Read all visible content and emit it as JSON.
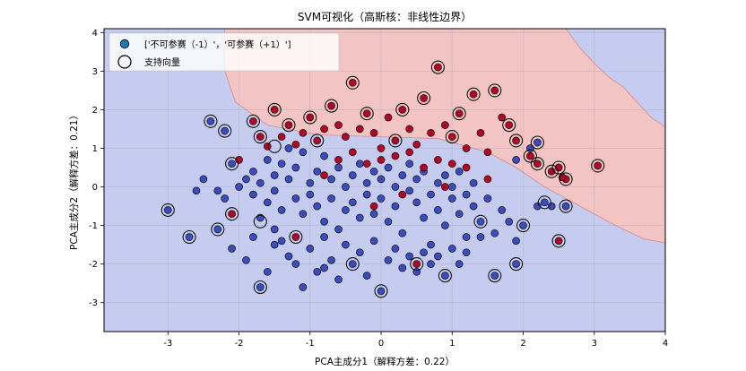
{
  "chart_data": {
    "type": "scatter",
    "title": "SVM可视化（高斯核：非线性边界）",
    "xlabel": "PCA主成分1（解释方差：0.22）",
    "ylabel": "PCA主成分2（解释方差：0.21）",
    "xlim": [
      -3.9,
      4.0
    ],
    "ylim": [
      -3.75,
      4.1
    ],
    "xticks": [
      -3,
      -2,
      -1,
      0,
      1,
      2,
      3,
      4
    ],
    "yticks": [
      -3,
      -2,
      -1,
      0,
      1,
      2,
      3,
      4
    ],
    "grid": true,
    "legend_position": "top-left",
    "legend": [
      {
        "label": "['不可参赛（-1）'，'可参赛（+1）']",
        "marker": "filled-circle"
      },
      {
        "label": "支持向量",
        "marker": "open-circle"
      }
    ],
    "colors": {
      "negative_class": "#3a4cc0",
      "positive_class": "#b40426",
      "negative_region": "#c5ccef",
      "positive_region": "#f2c4c4",
      "boundary": "#d98a8a"
    },
    "decision_region_positive_boundary": [
      [
        -2.2,
        4.1
      ],
      [
        -2.2,
        3.0
      ],
      [
        -2.05,
        2.2
      ],
      [
        -1.6,
        1.6
      ],
      [
        -0.9,
        1.35
      ],
      [
        0.0,
        1.3
      ],
      [
        0.8,
        1.25
      ],
      [
        1.5,
        0.9
      ],
      [
        1.9,
        0.5
      ],
      [
        2.3,
        0.0
      ],
      [
        2.8,
        -0.5
      ],
      [
        3.3,
        -1.0
      ],
      [
        3.7,
        -1.35
      ],
      [
        4.0,
        -1.45
      ],
      [
        4.0,
        1.55
      ],
      [
        3.8,
        1.8
      ],
      [
        3.6,
        2.2
      ],
      [
        3.4,
        2.6
      ],
      [
        3.2,
        2.85
      ],
      [
        3.0,
        3.2
      ],
      [
        2.8,
        3.6
      ],
      [
        2.6,
        4.1
      ]
    ],
    "series": [
      {
        "name": "不可参赛（-1）",
        "class": -1,
        "points": [
          [
            -3.0,
            -0.6
          ],
          [
            -2.7,
            -1.3
          ],
          [
            -2.4,
            1.7
          ],
          [
            -2.2,
            1.45
          ],
          [
            -2.1,
            0.6
          ],
          [
            -2.6,
            -0.1
          ],
          [
            -2.5,
            0.2
          ],
          [
            -2.3,
            -0.1
          ],
          [
            -2.2,
            -0.3
          ],
          [
            -2.0,
            0.0
          ],
          [
            -1.9,
            0.2
          ],
          [
            -1.8,
            0.4
          ],
          [
            -1.8,
            -0.2
          ],
          [
            -1.7,
            0.1
          ],
          [
            -1.6,
            -0.4
          ],
          [
            -1.6,
            0.7
          ],
          [
            -1.5,
            0.3
          ],
          [
            -1.5,
            -0.1
          ],
          [
            -1.4,
            0.6
          ],
          [
            -1.4,
            -0.6
          ],
          [
            -1.3,
            1.0
          ],
          [
            -1.3,
            0.2
          ],
          [
            -1.2,
            -0.3
          ],
          [
            -1.2,
            0.5
          ],
          [
            -1.1,
            0.9
          ],
          [
            -1.1,
            -0.7
          ],
          [
            -1.0,
            0.1
          ],
          [
            -1.0,
            -0.2
          ],
          [
            -0.9,
            0.4
          ],
          [
            -0.9,
            -0.5
          ],
          [
            -0.8,
            0.8
          ],
          [
            -0.8,
            -0.9
          ],
          [
            -0.7,
            0.2
          ],
          [
            -0.7,
            -0.3
          ],
          [
            -0.6,
            0.5
          ],
          [
            -0.6,
            -1.1
          ],
          [
            -0.5,
            0.0
          ],
          [
            -0.5,
            -0.6
          ],
          [
            -0.4,
            0.3
          ],
          [
            -0.4,
            -0.4
          ],
          [
            -0.3,
            0.6
          ],
          [
            -0.3,
            -0.8
          ],
          [
            -0.2,
            0.1
          ],
          [
            -0.2,
            -0.2
          ],
          [
            -0.1,
            0.4
          ],
          [
            -0.1,
            -0.7
          ],
          [
            0.0,
            0.2
          ],
          [
            0.0,
            -0.3
          ],
          [
            0.1,
            0.5
          ],
          [
            0.1,
            -0.9
          ],
          [
            0.2,
            0.0
          ],
          [
            0.2,
            -0.5
          ],
          [
            0.3,
            0.3
          ],
          [
            0.3,
            -1.2
          ],
          [
            0.4,
            0.6
          ],
          [
            0.4,
            -0.1
          ],
          [
            0.5,
            -0.4
          ],
          [
            0.5,
            0.2
          ],
          [
            0.6,
            -0.8
          ],
          [
            0.6,
            0.4
          ],
          [
            0.7,
            -0.2
          ],
          [
            0.7,
            -1.5
          ],
          [
            0.8,
            0.1
          ],
          [
            0.8,
            -0.6
          ],
          [
            0.9,
            0.3
          ],
          [
            0.9,
            -1.0
          ],
          [
            1.0,
            -0.3
          ],
          [
            1.0,
            0.0
          ],
          [
            1.1,
            -0.7
          ],
          [
            1.1,
            0.4
          ],
          [
            1.2,
            -0.2
          ],
          [
            1.2,
            -1.3
          ],
          [
            1.3,
            0.1
          ],
          [
            1.3,
            -0.5
          ],
          [
            1.4,
            -0.9
          ],
          [
            1.5,
            -0.3
          ],
          [
            1.6,
            -1.2
          ],
          [
            1.7,
            -0.6
          ],
          [
            1.8,
            -0.9
          ],
          [
            1.9,
            -1.4
          ],
          [
            2.0,
            -1.0
          ],
          [
            2.2,
            -0.5
          ],
          [
            2.3,
            -0.4
          ],
          [
            2.4,
            -0.5
          ],
          [
            2.6,
            -0.5
          ],
          [
            2.1,
            1.0
          ],
          [
            2.2,
            1.15
          ],
          [
            1.9,
            0.7
          ],
          [
            -1.7,
            -0.8
          ],
          [
            -1.5,
            -1.1
          ],
          [
            -1.4,
            -1.4
          ],
          [
            -1.3,
            -1.8
          ],
          [
            -1.2,
            -2.0
          ],
          [
            -1.0,
            -1.6
          ],
          [
            -0.9,
            -2.2
          ],
          [
            -0.8,
            -1.3
          ],
          [
            -0.7,
            -1.9
          ],
          [
            -0.6,
            -2.4
          ],
          [
            -0.5,
            -1.5
          ],
          [
            -0.4,
            -2.0
          ],
          [
            -0.3,
            -1.7
          ],
          [
            -0.2,
            -2.3
          ],
          [
            -0.1,
            -1.4
          ],
          [
            0.0,
            -2.7
          ],
          [
            0.1,
            -1.9
          ],
          [
            0.2,
            -1.6
          ],
          [
            0.3,
            -2.1
          ],
          [
            0.4,
            -1.8
          ],
          [
            0.5,
            -2.2
          ],
          [
            0.6,
            -1.7
          ],
          [
            0.7,
            -2.0
          ],
          [
            0.8,
            -1.8
          ],
          [
            0.9,
            -2.3
          ],
          [
            1.0,
            -1.6
          ],
          [
            1.1,
            -2.0
          ],
          [
            1.2,
            -1.7
          ],
          [
            1.4,
            -1.3
          ],
          [
            1.6,
            -2.3
          ],
          [
            1.9,
            -2.0
          ],
          [
            -2.1,
            -1.6
          ],
          [
            -1.9,
            -1.9
          ],
          [
            -1.6,
            -2.2
          ],
          [
            -1.7,
            -2.6
          ],
          [
            -1.5,
            -1.5
          ],
          [
            -1.1,
            -2.6
          ],
          [
            -0.8,
            -2.1
          ],
          [
            -2.3,
            -1.1
          ],
          [
            -1.8,
            -1.3
          ]
        ]
      },
      {
        "name": "可参赛（+1）",
        "class": 1,
        "points": [
          [
            -1.8,
            1.7
          ],
          [
            -1.7,
            1.3
          ],
          [
            -1.6,
            1.05
          ],
          [
            -1.5,
            2.0
          ],
          [
            -1.4,
            1.3
          ],
          [
            -1.3,
            1.6
          ],
          [
            -1.2,
            1.1
          ],
          [
            -1.1,
            1.4
          ],
          [
            -1.0,
            1.8
          ],
          [
            -0.9,
            1.2
          ],
          [
            -0.8,
            1.5
          ],
          [
            -0.7,
            2.1
          ],
          [
            -0.6,
            1.6
          ],
          [
            -0.5,
            1.3
          ],
          [
            -0.4,
            2.7
          ],
          [
            -0.3,
            1.5
          ],
          [
            -0.2,
            1.9
          ],
          [
            -0.1,
            1.4
          ],
          [
            0.0,
            1.0
          ],
          [
            0.1,
            1.8
          ],
          [
            0.2,
            1.2
          ],
          [
            0.3,
            2.0
          ],
          [
            0.4,
            1.5
          ],
          [
            0.5,
            1.1
          ],
          [
            0.6,
            2.3
          ],
          [
            0.7,
            1.4
          ],
          [
            0.8,
            3.1
          ],
          [
            0.9,
            1.6
          ],
          [
            1.0,
            1.3
          ],
          [
            1.1,
            1.9
          ],
          [
            1.2,
            1.0
          ],
          [
            1.3,
            2.4
          ],
          [
            1.4,
            1.4
          ],
          [
            1.5,
            0.9
          ],
          [
            1.6,
            2.5
          ],
          [
            1.7,
            1.8
          ],
          [
            1.8,
            1.6
          ],
          [
            1.9,
            1.2
          ],
          [
            2.1,
            0.8
          ],
          [
            2.2,
            0.6
          ],
          [
            2.4,
            0.4
          ],
          [
            2.5,
            0.5
          ],
          [
            2.6,
            0.2
          ],
          [
            3.05,
            0.55
          ],
          [
            2.55,
            0.25
          ],
          [
            -0.6,
            0.7
          ],
          [
            -0.4,
            0.9
          ],
          [
            -0.2,
            0.6
          ],
          [
            0.0,
            0.7
          ],
          [
            0.2,
            0.8
          ],
          [
            0.4,
            0.9
          ],
          [
            0.6,
            0.5
          ],
          [
            0.8,
            0.7
          ],
          [
            1.0,
            0.6
          ],
          [
            1.2,
            0.5
          ],
          [
            -2.0,
            0.7
          ],
          [
            -2.1,
            -0.7
          ],
          [
            -1.2,
            -1.3
          ],
          [
            0.5,
            -2.0
          ],
          [
            2.5,
            -1.4
          ],
          [
            -0.1,
            -0.5
          ],
          [
            0.3,
            -0.2
          ],
          [
            0.9,
            0.0
          ],
          [
            1.5,
            0.2
          ],
          [
            -0.8,
            0.3
          ]
        ]
      }
    ],
    "support_vectors": [
      [
        -3.0,
        -0.6
      ],
      [
        -2.7,
        -1.3
      ],
      [
        -2.4,
        1.7
      ],
      [
        -2.2,
        1.45
      ],
      [
        -2.1,
        0.6
      ],
      [
        -2.1,
        -0.7
      ],
      [
        -1.8,
        1.7
      ],
      [
        -1.7,
        1.3
      ],
      [
        -1.7,
        -0.9
      ],
      [
        -1.7,
        -2.6
      ],
      [
        -1.5,
        2.0
      ],
      [
        -1.3,
        1.6
      ],
      [
        -1.2,
        -1.3
      ],
      [
        -1.0,
        1.8
      ],
      [
        -0.7,
        2.1
      ],
      [
        -0.4,
        2.7
      ],
      [
        -0.2,
        1.9
      ],
      [
        0.0,
        -2.7
      ],
      [
        0.3,
        2.0
      ],
      [
        0.5,
        -2.0
      ],
      [
        0.6,
        2.3
      ],
      [
        0.8,
        3.1
      ],
      [
        1.1,
        1.9
      ],
      [
        1.3,
        2.4
      ],
      [
        1.6,
        2.5
      ],
      [
        1.6,
        -2.3
      ],
      [
        1.9,
        -2.0
      ],
      [
        1.8,
        1.6
      ],
      [
        1.9,
        1.2
      ],
      [
        2.1,
        0.8
      ],
      [
        2.2,
        1.15
      ],
      [
        2.2,
        0.6
      ],
      [
        2.4,
        0.4
      ],
      [
        2.5,
        0.5
      ],
      [
        2.6,
        0.2
      ],
      [
        2.6,
        -0.5
      ],
      [
        2.5,
        -1.4
      ],
      [
        3.05,
        0.55
      ],
      [
        2.3,
        -0.4
      ],
      [
        2.0,
        -1.0
      ],
      [
        1.4,
        -0.9
      ],
      [
        -1.5,
        1.05
      ],
      [
        -0.9,
        1.2
      ],
      [
        0.2,
        1.2
      ],
      [
        1.0,
        1.3
      ],
      [
        -2.3,
        -1.1
      ],
      [
        -0.4,
        -2.0
      ],
      [
        0.9,
        -2.3
      ]
    ]
  }
}
